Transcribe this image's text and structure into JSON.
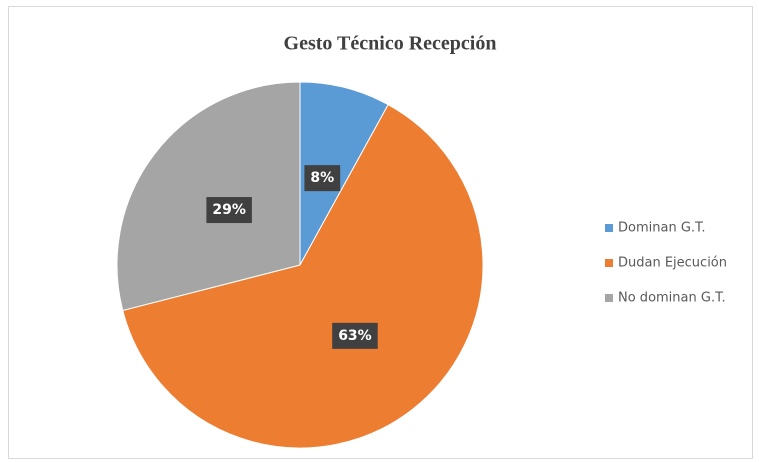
{
  "chart_data": {
    "type": "pie",
    "title": "Gesto Técnico Recepción",
    "categories": [
      "Dominan G.T.",
      "Dudan Ejecución",
      "No dominan G.T."
    ],
    "values": [
      8,
      63,
      29
    ],
    "value_labels": [
      "8%",
      "63%",
      "29%"
    ],
    "colors": [
      "#5b9bd5",
      "#ed7d31",
      "#a5a5a5"
    ],
    "legend": "right"
  }
}
